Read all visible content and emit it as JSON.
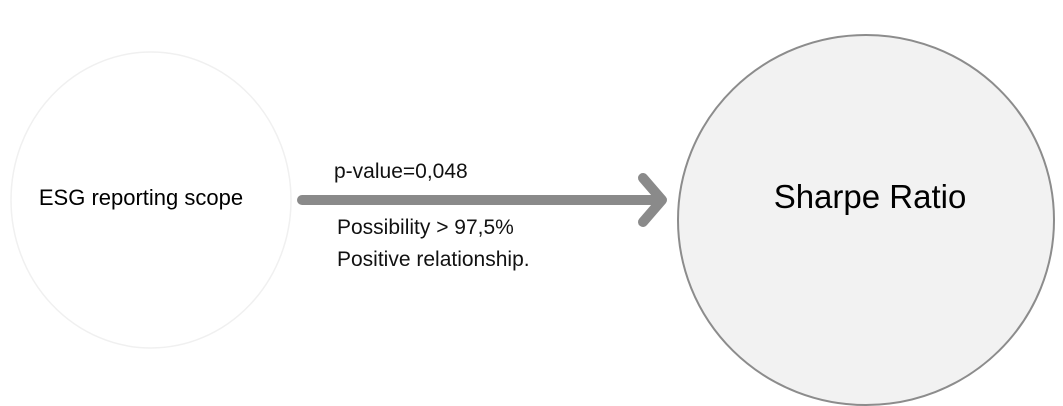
{
  "nodes": {
    "source": {
      "label": "ESG reporting scope"
    },
    "target": {
      "label": "Sharpe Ratio"
    }
  },
  "edge": {
    "p_value_label": "p-value=0,048",
    "note_line_1": "Possibility > 97,5%",
    "note_line_2": "Positive relationship."
  },
  "colors": {
    "arrow": "#8a8a8a",
    "source_fill": "#ffffff",
    "source_stroke": "#f0f0f0",
    "target_fill": "#f2f2f2",
    "target_stroke": "#8c8c8c"
  },
  "icons": {
    "arrow": "right-arrow-icon"
  }
}
